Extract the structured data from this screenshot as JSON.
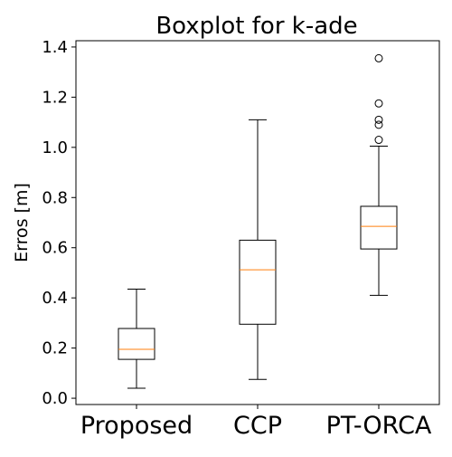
{
  "chart_data": {
    "type": "boxplot",
    "title": "Boxplot for k-ade",
    "xlabel": "",
    "ylabel": "Erros [m]",
    "ylim": [
      -0.025,
      1.425
    ],
    "yticks": [
      "0.0",
      "0.2",
      "0.4",
      "0.6",
      "0.8",
      "1.0",
      "1.2",
      "1.4"
    ],
    "ytick_values": [
      0.0,
      0.2,
      0.4,
      0.6,
      0.8,
      1.0,
      1.2,
      1.4
    ],
    "categories": [
      "Proposed",
      "CCP",
      "PT-ORCA"
    ],
    "grid": false,
    "boxes": [
      {
        "category": "Proposed",
        "whisker_low": 0.04,
        "q1": 0.155,
        "median": 0.195,
        "q3": 0.278,
        "whisker_high": 0.435,
        "outliers": []
      },
      {
        "category": "CCP",
        "whisker_low": 0.075,
        "q1": 0.295,
        "median": 0.512,
        "q3": 0.63,
        "whisker_high": 1.11,
        "outliers": []
      },
      {
        "category": "PT-ORCA",
        "whisker_low": 0.41,
        "q1": 0.595,
        "median": 0.685,
        "q3": 0.765,
        "whisker_high": 1.005,
        "outliers": [
          1.03,
          1.09,
          1.11,
          1.175,
          1.355
        ]
      }
    ],
    "colors": {
      "box": "#000000",
      "median": "#ff7f0e",
      "outlier": "#000000"
    }
  }
}
